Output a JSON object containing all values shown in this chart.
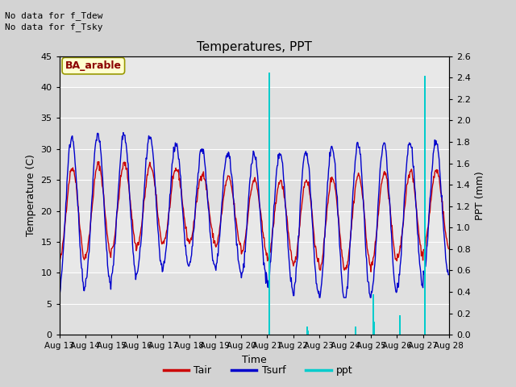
{
  "title": "Temperatures, PPT",
  "xlabel": "Time",
  "ylabel_left": "Temperature (C)",
  "ylabel_right": "PPT (mm)",
  "annotation_line1": "No data for f_Tdew",
  "annotation_line2": "No data for f_Tsky",
  "box_label": "BA_arable",
  "ylim_left": [
    0,
    45
  ],
  "ylim_right": [
    0.0,
    2.6
  ],
  "yticks_left": [
    0,
    5,
    10,
    15,
    20,
    25,
    30,
    35,
    40,
    45
  ],
  "yticks_right": [
    0.0,
    0.2,
    0.4,
    0.6,
    0.8,
    1.0,
    1.2,
    1.4,
    1.6,
    1.8,
    2.0,
    2.2,
    2.4,
    2.6
  ],
  "tair_color": "#cc0000",
  "tsurf_color": "#0000cc",
  "ppt_color": "#00cccc",
  "legend_labels": [
    "Tair",
    "Tsurf",
    "ppt"
  ],
  "xstart": 13,
  "xend": 28,
  "xtick_labels": [
    "Aug 13",
    "Aug 14",
    "Aug 15",
    "Aug 16",
    "Aug 17",
    "Aug 18",
    "Aug 19",
    "Aug 20",
    "Aug 21",
    "Aug 22",
    "Aug 23",
    "Aug 24",
    "Aug 25",
    "Aug 26",
    "Aug 27",
    "Aug 28"
  ],
  "fig_bg": "#d3d3d3",
  "plot_bg": "#e8e8e8",
  "band_color": "#d8d8d8",
  "grid_color": "#ffffff",
  "n_days": 15,
  "n_per_day": 48,
  "seed": 42
}
